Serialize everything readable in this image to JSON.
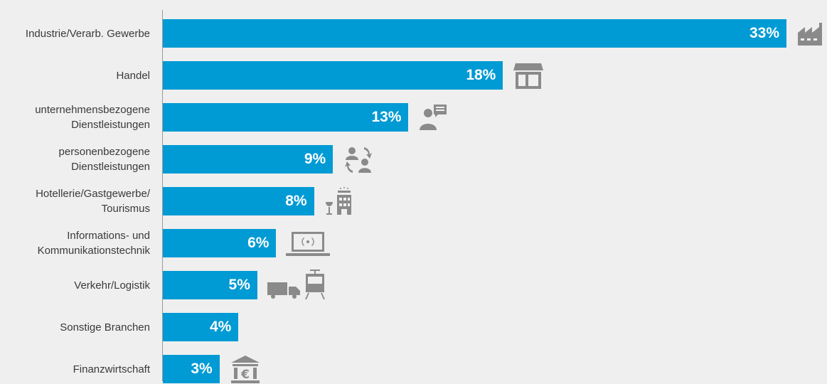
{
  "chart_data": {
    "type": "bar",
    "orientation": "horizontal",
    "categories": [
      "Industrie/Verarb. Gewerbe",
      "Handel",
      "unternehmensbezogene\nDienstleistungen",
      "personenbezogene\nDienstleistungen",
      "Hotellerie/Gastgewerbe/\nTourismus",
      "Informations- und\nKommunikationstechnik",
      "Verkehr/Logistik",
      "Sonstige Branchen",
      "Finanzwirtschaft"
    ],
    "values": [
      33,
      18,
      13,
      9,
      8,
      6,
      5,
      4,
      3
    ],
    "value_labels": [
      "33%",
      "18%",
      "13%",
      "9%",
      "8%",
      "6%",
      "5%",
      "4%",
      "3%"
    ],
    "icons": [
      "factory-icon",
      "shop-icon",
      "business-person-chat-icon",
      "people-exchange-icon",
      "hotel-wine-icon",
      "laptop-wifi-icon",
      "truck-train-icon",
      "",
      "bank-euro-icon"
    ],
    "xlim": [
      0,
      33
    ],
    "unit": "%",
    "grid": false,
    "title": "",
    "xlabel": "",
    "ylabel": "",
    "colors": {
      "bar": "#009ad4",
      "background": "#efefef",
      "icon": "#8a8a8a",
      "label": "#3a3a3a"
    }
  }
}
